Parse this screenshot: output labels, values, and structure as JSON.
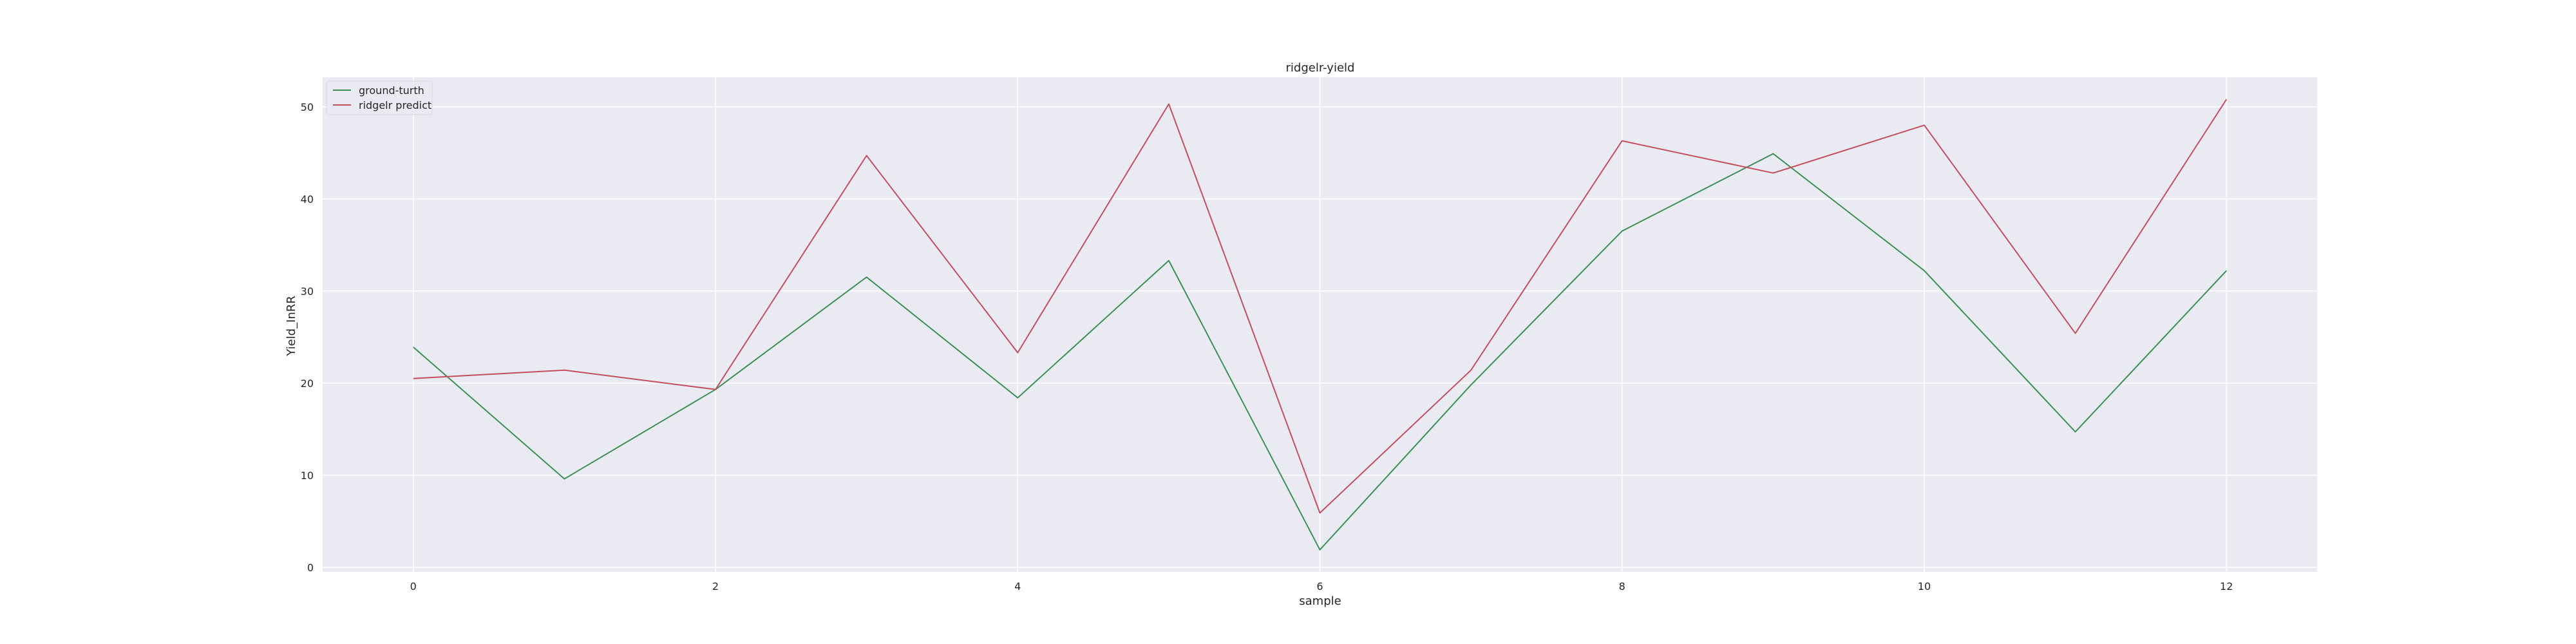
{
  "chart_data": {
    "type": "line",
    "title": "ridgelr-yield",
    "xlabel": "sample",
    "ylabel": "Yield_InRR",
    "xlim": [
      -0.6,
      12.6
    ],
    "ylim": [
      -0.5,
      53.2
    ],
    "x_ticks": [
      0,
      2,
      4,
      6,
      8,
      10,
      12
    ],
    "y_ticks": [
      0,
      10,
      20,
      30,
      40,
      50
    ],
    "grid": true,
    "legend_position": "top-left",
    "x": [
      0,
      1,
      2,
      3,
      4,
      5,
      6,
      7,
      8,
      9,
      10,
      11,
      12
    ],
    "series": [
      {
        "name": "ground-turth",
        "color": "#3d8f57",
        "values": [
          23.9,
          9.6,
          19.3,
          31.5,
          18.4,
          33.3,
          1.9,
          19.8,
          36.5,
          44.9,
          32.2,
          14.7,
          32.2
        ]
      },
      {
        "name": "ridgelr predict",
        "color": "#c44e60",
        "values": [
          20.5,
          21.4,
          19.3,
          44.7,
          23.3,
          50.3,
          5.9,
          21.4,
          46.3,
          42.8,
          48.0,
          25.4,
          50.8
        ]
      }
    ]
  }
}
